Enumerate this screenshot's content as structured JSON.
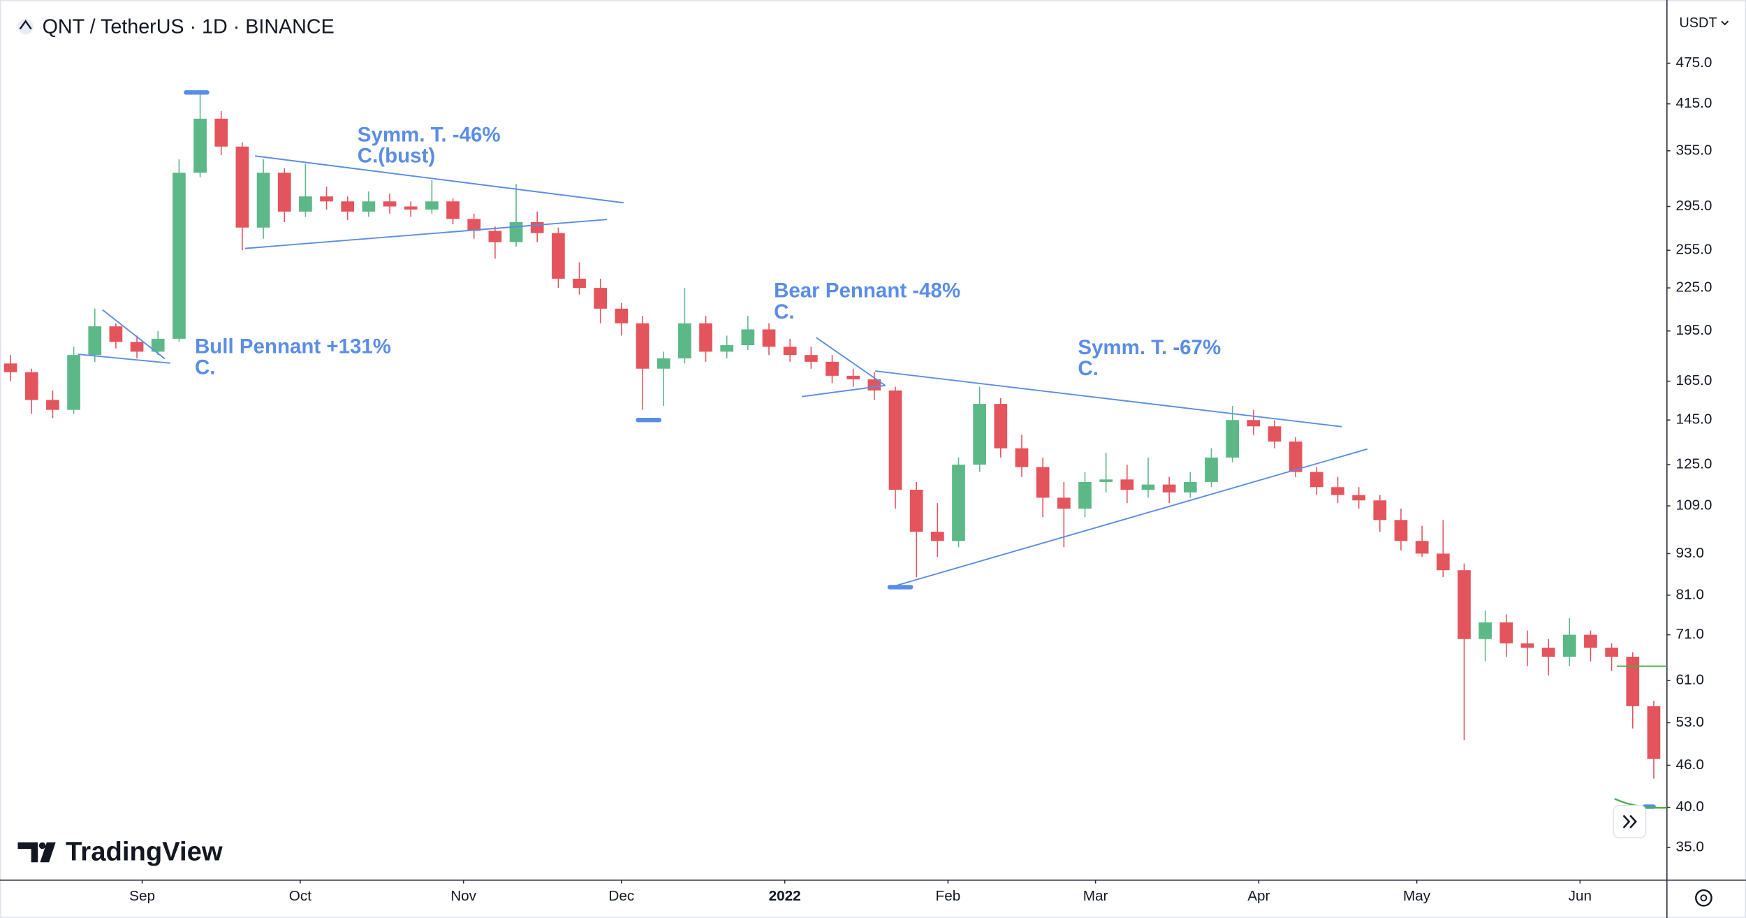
{
  "chart_data": {
    "type": "candlestick",
    "title": "QNT / TetherUS · 1D · BINANCE",
    "currency": "USDT",
    "brand": "TradingView",
    "log_scale": true,
    "up_color": "#5cb887",
    "down_color": "#e3545d",
    "x": [
      2,
      6,
      10,
      14,
      18,
      22,
      26,
      30,
      34,
      38,
      42,
      46,
      50,
      54,
      58,
      62,
      66,
      70,
      74,
      78,
      82,
      86,
      90,
      94,
      98,
      102,
      106,
      110,
      114,
      118,
      122,
      126,
      130,
      134,
      138,
      142,
      146,
      150,
      154,
      158,
      162,
      166,
      170,
      174,
      178,
      182,
      186,
      190,
      194,
      198,
      202,
      206,
      210,
      214,
      218,
      222,
      226,
      230,
      234,
      238,
      242,
      246,
      250,
      254,
      258,
      262,
      266,
      270,
      274,
      278,
      282,
      286,
      290,
      294,
      298,
      302,
      306,
      310,
      314
    ],
    "open": [
      175,
      170,
      155,
      150,
      180,
      198,
      188,
      182,
      190,
      330,
      395,
      360,
      275,
      330,
      290,
      305,
      300,
      290,
      300,
      295,
      292,
      300,
      283,
      272,
      262,
      280,
      270,
      232,
      225,
      210,
      200,
      172,
      178,
      200,
      182,
      186,
      196,
      185,
      180,
      176,
      168,
      166,
      160,
      115,
      100,
      97,
      125,
      153,
      132,
      124,
      112,
      108,
      118,
      119,
      115,
      117,
      114,
      118,
      128,
      145,
      142,
      135,
      122,
      116,
      113,
      111,
      104,
      97,
      93,
      88,
      70,
      74,
      69,
      68,
      66,
      71,
      68,
      66,
      56
    ],
    "high": [
      180,
      172,
      160,
      185,
      210,
      200,
      192,
      195,
      345,
      430,
      405,
      365,
      345,
      335,
      340,
      315,
      305,
      310,
      308,
      300,
      322,
      303,
      288,
      276,
      318,
      290,
      275,
      245,
      232,
      214,
      205,
      182,
      225,
      205,
      192,
      205,
      200,
      190,
      185,
      180,
      172,
      170,
      162,
      118,
      110,
      128,
      162,
      156,
      138,
      128,
      118,
      122,
      130,
      125,
      128,
      120,
      122,
      132,
      152,
      150,
      145,
      137,
      124,
      120,
      116,
      113,
      108,
      102,
      104,
      90,
      77,
      76,
      72,
      70,
      75,
      72,
      69,
      67,
      57
    ],
    "low": [
      165,
      148,
      146,
      148,
      176,
      184,
      178,
      180,
      188,
      325,
      350,
      255,
      265,
      280,
      285,
      292,
      282,
      285,
      288,
      285,
      288,
      278,
      265,
      248,
      258,
      262,
      225,
      220,
      200,
      192,
      150,
      152,
      175,
      176,
      178,
      183,
      180,
      176,
      172,
      164,
      162,
      155,
      108,
      86,
      92,
      95,
      122,
      128,
      120,
      105,
      95,
      105,
      114,
      110,
      112,
      110,
      112,
      116,
      126,
      138,
      132,
      120,
      113,
      110,
      108,
      100,
      94,
      92,
      86,
      50,
      65,
      66,
      64,
      62,
      64,
      65,
      63,
      52,
      44
    ],
    "close": [
      170,
      155,
      150,
      180,
      198,
      188,
      182,
      190,
      330,
      395,
      360,
      275,
      330,
      290,
      305,
      300,
      290,
      300,
      295,
      292,
      300,
      283,
      272,
      262,
      280,
      270,
      232,
      225,
      210,
      200,
      172,
      178,
      200,
      182,
      186,
      196,
      185,
      180,
      176,
      168,
      166,
      160,
      115,
      100,
      97,
      125,
      153,
      132,
      124,
      112,
      108,
      118,
      119,
      115,
      117,
      114,
      118,
      128,
      145,
      142,
      135,
      122,
      116,
      113,
      111,
      104,
      97,
      93,
      88,
      70,
      74,
      69,
      68,
      66,
      71,
      68,
      66,
      56,
      47
    ],
    "xlim": [
      0,
      316.5
    ],
    "xticks": [
      {
        "value": 27,
        "label": "Sep"
      },
      {
        "value": 57,
        "label": "Oct"
      },
      {
        "value": 88,
        "label": "Nov"
      },
      {
        "value": 118,
        "label": "Dec"
      },
      {
        "value": 149,
        "label": "2022"
      },
      {
        "value": 180,
        "label": "Feb"
      },
      {
        "value": 208,
        "label": "Mar"
      },
      {
        "value": 239,
        "label": "Apr"
      },
      {
        "value": 269,
        "label": "May"
      },
      {
        "value": 300,
        "label": "Jun"
      }
    ],
    "ylim": [
      31.4,
      569
    ],
    "yticks": [
      {
        "value": 475,
        "label": "475.0"
      },
      {
        "value": 415,
        "label": "415.0"
      },
      {
        "value": 355,
        "label": "355.0"
      },
      {
        "value": 295,
        "label": "295.0"
      },
      {
        "value": 255,
        "label": "255.0"
      },
      {
        "value": 225,
        "label": "225.0"
      },
      {
        "value": 195,
        "label": "195.0"
      },
      {
        "value": 165,
        "label": "165.0"
      },
      {
        "value": 145,
        "label": "145.0"
      },
      {
        "value": 125,
        "label": "125.0"
      },
      {
        "value": 109,
        "label": "109.0"
      },
      {
        "value": 93,
        "label": "93.0"
      },
      {
        "value": 81,
        "label": "81.0"
      },
      {
        "value": 71,
        "label": "71.0"
      },
      {
        "value": 61,
        "label": "61.0"
      },
      {
        "value": 53,
        "label": "53.0"
      },
      {
        "value": 46,
        "label": "46.0"
      },
      {
        "value": 40,
        "label": "40.0"
      },
      {
        "value": 35,
        "label": "35.0"
      }
    ],
    "annotations": [
      "Bull Pennant +131%",
      "C.",
      "Symm. T. -46%",
      "C.(bust)",
      "Bear Pennant -48%",
      "C.",
      "Symm. T. -67%",
      "C."
    ]
  }
}
